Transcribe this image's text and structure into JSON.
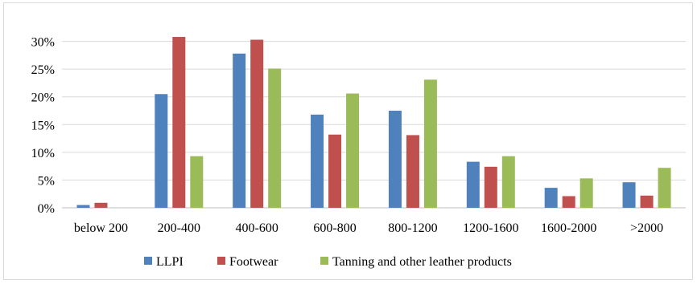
{
  "chart_data": {
    "type": "bar",
    "categories": [
      "below 200",
      "200-400",
      "400-600",
      "600-800",
      "800-1200",
      "1200-1600",
      "1600-2000",
      ">2000"
    ],
    "series": [
      {
        "name": "LLPI",
        "color": "#4f81bd",
        "values": [
          0.5,
          20.5,
          27.8,
          16.8,
          17.5,
          8.3,
          3.6,
          4.6
        ]
      },
      {
        "name": "Footwear",
        "color": "#c0504d",
        "values": [
          0.9,
          30.8,
          30.3,
          13.2,
          13.1,
          7.4,
          2.1,
          2.2
        ]
      },
      {
        "name": "Tanning and other leather products",
        "color": "#9bbb59",
        "values": [
          0.0,
          9.3,
          25.1,
          20.6,
          23.1,
          9.3,
          5.3,
          7.2
        ]
      }
    ],
    "yticks": [
      "0%",
      "5%",
      "10%",
      "15%",
      "20%",
      "25%",
      "30%"
    ],
    "ylim": [
      0,
      35
    ],
    "ystep": 5,
    "grid": true,
    "legend": "bottom"
  }
}
